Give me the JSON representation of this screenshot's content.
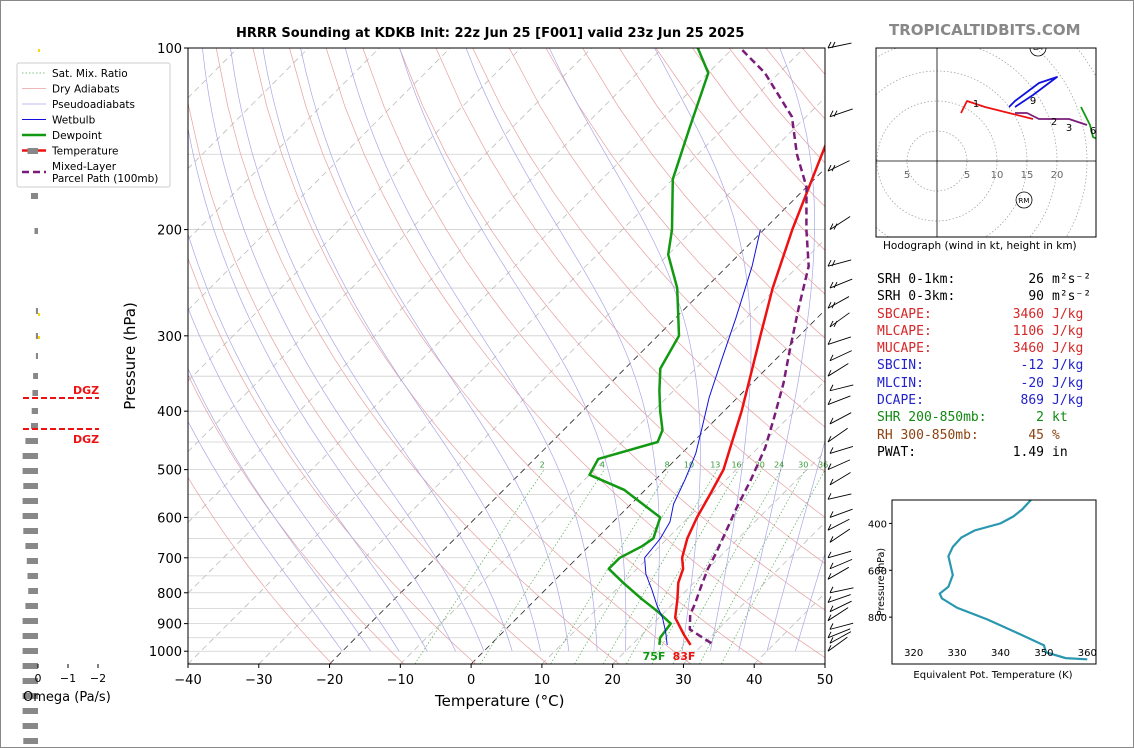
{
  "brand": "TROPICALTIDBITS.COM",
  "title": "HRRR Sounding at KDKB Init: 22z Jun 25 [F001] valid 23z Jun 25 2025",
  "chart_data": [
    {
      "type": "line",
      "name": "skewt",
      "xlabel": "Temperature (°C)",
      "ylabel": "Pressure (hPa)",
      "xlim": [
        -40,
        50
      ],
      "ylim": [
        1050,
        100
      ],
      "y_scale": "log",
      "x_ticks": [
        "−40",
        "−30",
        "−20",
        "−10",
        "0",
        "10",
        "20",
        "30",
        "40",
        "50"
      ],
      "y_ticks": [
        100,
        200,
        300,
        400,
        500,
        600,
        700,
        800,
        900,
        1000
      ],
      "legend": [
        "Sat. Mix. Ratio",
        "Dry Adiabats",
        "Pseudoadiabats",
        "Wetbulb",
        "Dewpoint",
        "Temperature",
        "Mixed-Layer\nParcel Path (100mb)"
      ],
      "legend_position": "top-left",
      "mixing_ratio_labels": [
        "2",
        "4",
        "8",
        "10",
        "13",
        "16",
        "20",
        "24",
        "30",
        "36"
      ],
      "surface_labels": {
        "dewpoint": "75F",
        "temperature": "83F"
      },
      "series": [
        {
          "name": "Temperature",
          "color": "#ee1111",
          "points": [
            [
              28.3,
              976
            ],
            [
              26,
              940
            ],
            [
              22.3,
              880
            ],
            [
              20,
              820
            ],
            [
              17.8,
              770
            ],
            [
              16.5,
              730
            ],
            [
              14.8,
              700
            ],
            [
              12.8,
              650
            ],
            [
              11.2,
              600
            ],
            [
              9.8,
              550
            ],
            [
              8.2,
              500
            ],
            [
              5.5,
              450
            ],
            [
              2.5,
              400
            ],
            [
              -1.2,
              350
            ],
            [
              -5.5,
              300
            ],
            [
              -10.5,
              250
            ],
            [
              -16,
              200
            ],
            [
              -21,
              160
            ],
            [
              -24,
              140
            ],
            [
              -27.5,
              120
            ],
            [
              -32,
              100
            ]
          ]
        },
        {
          "name": "Dewpoint",
          "color": "#119911",
          "points": [
            [
              23.9,
              976
            ],
            [
              23,
              950
            ],
            [
              22.5,
              900
            ],
            [
              19,
              860
            ],
            [
              15,
              820
            ],
            [
              10,
              770
            ],
            [
              6,
              730
            ],
            [
              6,
              700
            ],
            [
              7.5,
              670
            ],
            [
              8,
              650
            ],
            [
              6,
              600
            ],
            [
              -3,
              540
            ],
            [
              -10,
              510
            ],
            [
              -11,
              480
            ],
            [
              -5,
              450
            ],
            [
              -6,
              430
            ],
            [
              -9,
              400
            ],
            [
              -12,
              370
            ],
            [
              -15,
              340
            ],
            [
              -17,
              300
            ],
            [
              -24,
              250
            ],
            [
              -30,
              220
            ],
            [
              -33,
              200
            ],
            [
              -40,
              165
            ],
            [
              -45,
              135
            ],
            [
              -50,
              110
            ],
            [
              -55,
              100
            ]
          ]
        },
        {
          "name": "Wetbulb",
          "color": "#1111dd",
          "points": [
            [
              25,
              976
            ],
            [
              23,
              930
            ],
            [
              20.5,
              880
            ],
            [
              18,
              840
            ],
            [
              15,
              790
            ],
            [
              12,
              745
            ],
            [
              9.5,
              700
            ],
            [
              9,
              650
            ],
            [
              8,
              610
            ],
            [
              6,
              570
            ],
            [
              4.2,
              520
            ],
            [
              2,
              470
            ],
            [
              -0.5,
              430
            ],
            [
              -4,
              380
            ],
            [
              -7.5,
              330
            ],
            [
              -11.5,
              280
            ],
            [
              -16.5,
              230
            ],
            [
              -20.5,
              200
            ]
          ]
        },
        {
          "name": "Mixed-Layer Parcel Path (100mb)",
          "color": "#7a1c7a",
          "points": [
            [
              31,
              970
            ],
            [
              26,
              920
            ],
            [
              24,
              870
            ],
            [
              23,
              830
            ],
            [
              21.5,
              780
            ],
            [
              20,
              730
            ],
            [
              19,
              690
            ],
            [
              17.5,
              640
            ],
            [
              15.5,
              580
            ],
            [
              13.5,
              520
            ],
            [
              11,
              460
            ],
            [
              8,
              410
            ],
            [
              4.5,
              360
            ],
            [
              0.5,
              315
            ],
            [
              -4,
              270
            ],
            [
              -8.5,
              230
            ],
            [
              -14,
              200
            ],
            [
              -20,
              170
            ],
            [
              -26,
              150
            ],
            [
              -32,
              130
            ],
            [
              -42,
              110
            ],
            [
              -49,
              100
            ]
          ]
        }
      ]
    },
    {
      "type": "line",
      "name": "hodograph",
      "caption": "Hodograph (wind in kt, height in km)",
      "x_ticks": [
        "5",
        "5",
        "10",
        "15",
        "20"
      ],
      "markers": [
        "LM",
        "RM"
      ],
      "height_labels": [
        "1",
        "9",
        "2",
        "3",
        "6"
      ],
      "segments": [
        {
          "color": "#ee1111",
          "points": [
            [
              4,
              8
            ],
            [
              5,
              10
            ],
            [
              8,
              9
            ],
            [
              12,
              8
            ],
            [
              16,
              7
            ]
          ]
        },
        {
          "color": "#7a1c7a",
          "points": [
            [
              13,
              8
            ],
            [
              15,
              8
            ],
            [
              17,
              7
            ],
            [
              22,
              7
            ],
            [
              25,
              6
            ]
          ]
        },
        {
          "color": "#1111dd",
          "points": [
            [
              12,
              9
            ],
            [
              13,
              10
            ],
            [
              17,
              13
            ],
            [
              20,
              14
            ],
            [
              16,
              11
            ],
            [
              13,
              9
            ]
          ]
        },
        {
          "color": "#119911",
          "points": [
            [
              24,
              9
            ],
            [
              25,
              7
            ],
            [
              25.5,
              6
            ],
            [
              26,
              4
            ],
            [
              28,
              3
            ],
            [
              29,
              3
            ],
            [
              30,
              5
            ],
            [
              30,
              6
            ]
          ]
        }
      ]
    },
    {
      "type": "line",
      "name": "theta-e",
      "xlabel": "Equivalent Pot. Temperature (K)",
      "ylabel": "Pressure (hPa)",
      "x_ticks": [
        320,
        330,
        340,
        350,
        360
      ],
      "y_ticks": [
        400,
        600,
        800
      ],
      "color": "#2a97b0",
      "points": [
        [
          347,
          300
        ],
        [
          345,
          340
        ],
        [
          343,
          370
        ],
        [
          340,
          400
        ],
        [
          334,
          430
        ],
        [
          331,
          460
        ],
        [
          329,
          500
        ],
        [
          328,
          540
        ],
        [
          328.5,
          580
        ],
        [
          329,
          620
        ],
        [
          328,
          670
        ],
        [
          326,
          700
        ],
        [
          326.5,
          720
        ],
        [
          330,
          760
        ],
        [
          337,
          810
        ],
        [
          343,
          860
        ],
        [
          350,
          920
        ],
        [
          350.5,
          950
        ],
        [
          355,
          975
        ],
        [
          360,
          980
        ]
      ]
    },
    {
      "type": "bar",
      "name": "omega",
      "xlabel": "Omega (Pa/s)",
      "x_ticks": [
        "0",
        "−1",
        "−2"
      ],
      "dgz_labels": [
        "DGZ",
        "DGZ"
      ],
      "dgz_levels": [
        380,
        430
      ]
    }
  ],
  "stats": [
    {
      "label": "SRH 0-1km:",
      "value": "26",
      "unit": "m²s⁻²",
      "color": "#000000"
    },
    {
      "label": "SRH 0-3km:",
      "value": "90",
      "unit": "m²s⁻²",
      "color": "#000000"
    },
    {
      "label": "SBCAPE:",
      "value": "3460",
      "unit": "J/kg",
      "color": "#d62728"
    },
    {
      "label": "MLCAPE:",
      "value": "1106",
      "unit": "J/kg",
      "color": "#d62728"
    },
    {
      "label": "MUCAPE:",
      "value": "3460",
      "unit": "J/kg",
      "color": "#d62728"
    },
    {
      "label": "SBCIN:",
      "value": "-12",
      "unit": "J/kg",
      "color": "#2222cc"
    },
    {
      "label": "MLCIN:",
      "value": "-20",
      "unit": "J/kg",
      "color": "#2222cc"
    },
    {
      "label": "DCAPE:",
      "value": "869",
      "unit": "J/kg",
      "color": "#2222cc"
    },
    {
      "label": "SHR 200-850mb:",
      "value": "2",
      "unit": "kt",
      "color": "#118811"
    },
    {
      "label": "RH 300-850mb:",
      "value": "45",
      "unit": "%",
      "color": "#8b4513"
    },
    {
      "label": "PWAT:",
      "value": "1.49",
      "unit": "in",
      "color": "#000000"
    }
  ]
}
